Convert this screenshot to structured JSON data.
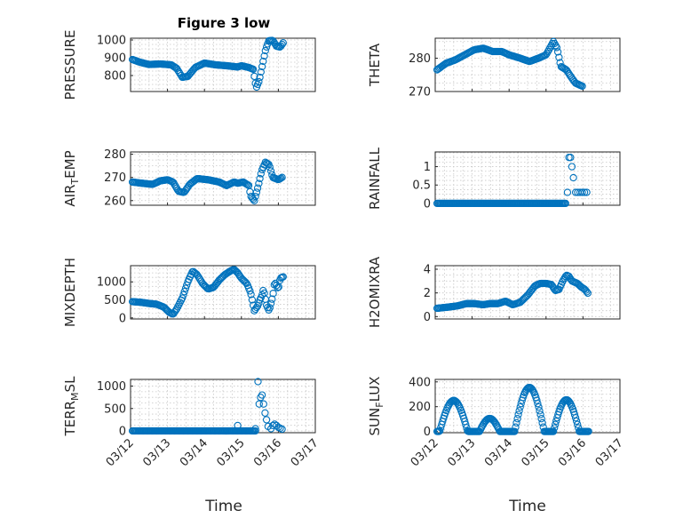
{
  "figure": {
    "title": "Figure 3 low",
    "xlabel": "Time"
  },
  "chart_data": [
    {
      "type": "scatter",
      "ylabel": "PRESSURE",
      "ylim": [
        710,
        1010
      ],
      "yticks": [
        800,
        900,
        1000
      ],
      "xlim": [
        0,
        5
      ],
      "xticks": [
        "03/12",
        "03/13",
        "03/14",
        "03/15",
        "03/16",
        "03/17"
      ],
      "color": "#0072bd",
      "keys": [
        [
          0.05,
          890
        ],
        [
          0.25,
          875
        ],
        [
          0.5,
          862
        ],
        [
          0.8,
          865
        ],
        [
          1.1,
          860
        ],
        [
          1.25,
          840
        ],
        [
          1.4,
          790
        ],
        [
          1.55,
          795
        ],
        [
          1.75,
          845
        ],
        [
          2.0,
          870
        ],
        [
          2.3,
          860
        ],
        [
          2.6,
          855
        ],
        [
          2.9,
          848
        ],
        [
          3.0,
          855
        ],
        [
          3.2,
          845
        ],
        [
          3.32,
          835
        ],
        [
          3.4,
          730
        ],
        [
          3.48,
          770
        ],
        [
          3.58,
          870
        ],
        [
          3.66,
          950
        ],
        [
          3.74,
          995
        ],
        [
          3.85,
          998
        ],
        [
          3.95,
          965
        ],
        [
          4.05,
          960
        ],
        [
          4.15,
          990
        ]
      ]
    },
    {
      "type": "scatter",
      "ylabel": "THETA",
      "ylim": [
        270,
        286
      ],
      "yticks": [
        270,
        280
      ],
      "xlim": [
        0,
        5
      ],
      "xticks": [
        "03/12",
        "03/13",
        "03/14",
        "03/15",
        "03/16",
        "03/17"
      ],
      "color": "#0072bd",
      "keys": [
        [
          0.05,
          276.5
        ],
        [
          0.3,
          278.5
        ],
        [
          0.55,
          279.5
        ],
        [
          0.8,
          281.0
        ],
        [
          1.05,
          282.5
        ],
        [
          1.3,
          283.0
        ],
        [
          1.55,
          282.0
        ],
        [
          1.8,
          282.0
        ],
        [
          2.0,
          281.0
        ],
        [
          2.3,
          280.0
        ],
        [
          2.55,
          279.0
        ],
        [
          2.8,
          280.0
        ],
        [
          3.0,
          281.0
        ],
        [
          3.1,
          283.0
        ],
        [
          3.2,
          285.0
        ],
        [
          3.3,
          283.0
        ],
        [
          3.4,
          277.5
        ],
        [
          3.55,
          276.5
        ],
        [
          3.7,
          274.0
        ],
        [
          3.8,
          272.5
        ],
        [
          3.9,
          272.0
        ],
        [
          4.0,
          271.5
        ]
      ]
    },
    {
      "type": "scatter",
      "ylabel": "AIR_TEMP",
      "ylim": [
        258,
        281
      ],
      "yticks": [
        260,
        270,
        280
      ],
      "xlim": [
        0,
        5
      ],
      "xticks": [
        "03/12",
        "03/13",
        "03/14",
        "03/15",
        "03/16",
        "03/17"
      ],
      "color": "#0072bd",
      "keys": [
        [
          0.05,
          268.0
        ],
        [
          0.3,
          267.5
        ],
        [
          0.6,
          267.0
        ],
        [
          0.8,
          268.5
        ],
        [
          1.0,
          269.0
        ],
        [
          1.15,
          268.0
        ],
        [
          1.3,
          264.0
        ],
        [
          1.45,
          263.5
        ],
        [
          1.6,
          267.0
        ],
        [
          1.8,
          269.5
        ],
        [
          2.1,
          269.0
        ],
        [
          2.4,
          268.0
        ],
        [
          2.6,
          266.5
        ],
        [
          2.8,
          268.0
        ],
        [
          2.9,
          267.5
        ],
        [
          3.05,
          268.0
        ],
        [
          3.2,
          266.5
        ],
        [
          3.25,
          262.0
        ],
        [
          3.35,
          260.0
        ],
        [
          3.45,
          266.0
        ],
        [
          3.55,
          273.0
        ],
        [
          3.65,
          276.5
        ],
        [
          3.75,
          275.5
        ],
        [
          3.85,
          270.0
        ],
        [
          4.0,
          269.0
        ],
        [
          4.1,
          270.0
        ]
      ]
    },
    {
      "type": "scatter",
      "ylabel": "RAINFALL",
      "ylim": [
        -0.05,
        1.4
      ],
      "yticks": [
        0,
        0.5,
        1
      ],
      "xlim": [
        0,
        5
      ],
      "xticks": [
        "03/12",
        "03/13",
        "03/14",
        "03/15",
        "03/16",
        "03/17"
      ],
      "color": "#0072bd",
      "zero_range": [
        0.05,
        3.55
      ],
      "points": [
        [
          3.58,
          0.3
        ],
        [
          3.62,
          1.25
        ],
        [
          3.66,
          1.25
        ],
        [
          3.7,
          1.0
        ],
        [
          3.74,
          0.7
        ],
        [
          3.8,
          0.3
        ],
        [
          3.86,
          0.3
        ],
        [
          3.92,
          0.3
        ],
        [
          3.98,
          0.3
        ],
        [
          4.04,
          0.3
        ],
        [
          4.1,
          0.3
        ]
      ]
    },
    {
      "type": "scatter",
      "ylabel": "MIXDEPTH",
      "ylim": [
        -30,
        1450
      ],
      "yticks": [
        0,
        500,
        1000
      ],
      "xlim": [
        0,
        5
      ],
      "xticks": [
        "03/12",
        "03/13",
        "03/14",
        "03/15",
        "03/16",
        "03/17"
      ],
      "color": "#0072bd",
      "keys": [
        [
          0.05,
          450
        ],
        [
          0.3,
          430
        ],
        [
          0.5,
          400
        ],
        [
          0.7,
          380
        ],
        [
          0.9,
          300
        ],
        [
          1.05,
          150
        ],
        [
          1.15,
          100
        ],
        [
          1.25,
          250
        ],
        [
          1.4,
          550
        ],
        [
          1.55,
          1000
        ],
        [
          1.68,
          1300
        ],
        [
          1.8,
          1200
        ],
        [
          1.95,
          950
        ],
        [
          2.1,
          800
        ],
        [
          2.25,
          850
        ],
        [
          2.4,
          1050
        ],
        [
          2.55,
          1200
        ],
        [
          2.7,
          1300
        ],
        [
          2.8,
          1350
        ],
        [
          2.9,
          1250
        ],
        [
          3.0,
          1100
        ],
        [
          3.15,
          950
        ],
        [
          3.25,
          700
        ],
        [
          3.35,
          200
        ],
        [
          3.45,
          350
        ],
        [
          3.5,
          500
        ],
        [
          3.55,
          600
        ],
        [
          3.6,
          800
        ],
        [
          3.68,
          350
        ],
        [
          3.75,
          200
        ],
        [
          3.85,
          600
        ],
        [
          3.9,
          1000
        ],
        [
          4.0,
          800
        ],
        [
          4.05,
          1100
        ],
        [
          4.15,
          1150
        ]
      ]
    },
    {
      "type": "scatter",
      "ylabel": "H2OMIXRA",
      "ylim": [
        -0.2,
        4.3
      ],
      "yticks": [
        0,
        2,
        4
      ],
      "xlim": [
        0,
        5
      ],
      "xticks": [
        "03/12",
        "03/13",
        "03/14",
        "03/15",
        "03/16",
        "03/17"
      ],
      "color": "#0072bd",
      "keys": [
        [
          0.05,
          0.7
        ],
        [
          0.35,
          0.8
        ],
        [
          0.6,
          0.9
        ],
        [
          0.85,
          1.1
        ],
        [
          1.05,
          1.1
        ],
        [
          1.3,
          1.0
        ],
        [
          1.5,
          1.1
        ],
        [
          1.7,
          1.1
        ],
        [
          1.9,
          1.3
        ],
        [
          2.1,
          1.0
        ],
        [
          2.3,
          1.2
        ],
        [
          2.5,
          1.8
        ],
        [
          2.7,
          2.6
        ],
        [
          2.85,
          2.8
        ],
        [
          3.0,
          2.8
        ],
        [
          3.15,
          2.7
        ],
        [
          3.25,
          2.2
        ],
        [
          3.35,
          2.3
        ],
        [
          3.45,
          3.0
        ],
        [
          3.55,
          3.5
        ],
        [
          3.62,
          3.4
        ],
        [
          3.7,
          3.0
        ],
        [
          3.85,
          2.8
        ],
        [
          3.95,
          2.5
        ],
        [
          4.05,
          2.3
        ],
        [
          4.15,
          1.9
        ]
      ]
    },
    {
      "type": "scatter",
      "ylabel": "TERR_MSL",
      "ylim": [
        -40,
        1150
      ],
      "yticks": [
        0,
        500,
        1000
      ],
      "xlim": [
        0,
        5
      ],
      "xticks": [
        "03/12",
        "03/13",
        "03/14",
        "03/15",
        "03/16",
        "03/17"
      ],
      "color": "#0072bd",
      "zero_range": [
        0.05,
        3.4
      ],
      "points": [
        [
          2.9,
          120
        ],
        [
          3.38,
          50
        ],
        [
          3.45,
          1100
        ],
        [
          3.48,
          600
        ],
        [
          3.52,
          750
        ],
        [
          3.56,
          800
        ],
        [
          3.6,
          600
        ],
        [
          3.64,
          400
        ],
        [
          3.68,
          250
        ],
        [
          3.72,
          100
        ],
        [
          3.8,
          50
        ],
        [
          3.85,
          120
        ],
        [
          3.9,
          150
        ],
        [
          3.95,
          120
        ],
        [
          4.0,
          80
        ],
        [
          4.05,
          60
        ],
        [
          4.1,
          40
        ]
      ]
    },
    {
      "type": "scatter",
      "ylabel": "SUN_FLUX",
      "ylim": [
        -10,
        420
      ],
      "yticks": [
        0,
        200,
        400
      ],
      "xlim": [
        0,
        5
      ],
      "xticks": [
        "03/12",
        "03/13",
        "03/14",
        "03/15",
        "03/16",
        "03/17"
      ],
      "color": "#0072bd",
      "days": [
        [
          0.12,
          0.88,
          250
        ],
        [
          1.2,
          1.75,
          105
        ],
        [
          2.15,
          2.95,
          355
        ],
        [
          3.2,
          3.9,
          255
        ]
      ],
      "day_range": [
        0.05,
        4.15
      ]
    }
  ]
}
